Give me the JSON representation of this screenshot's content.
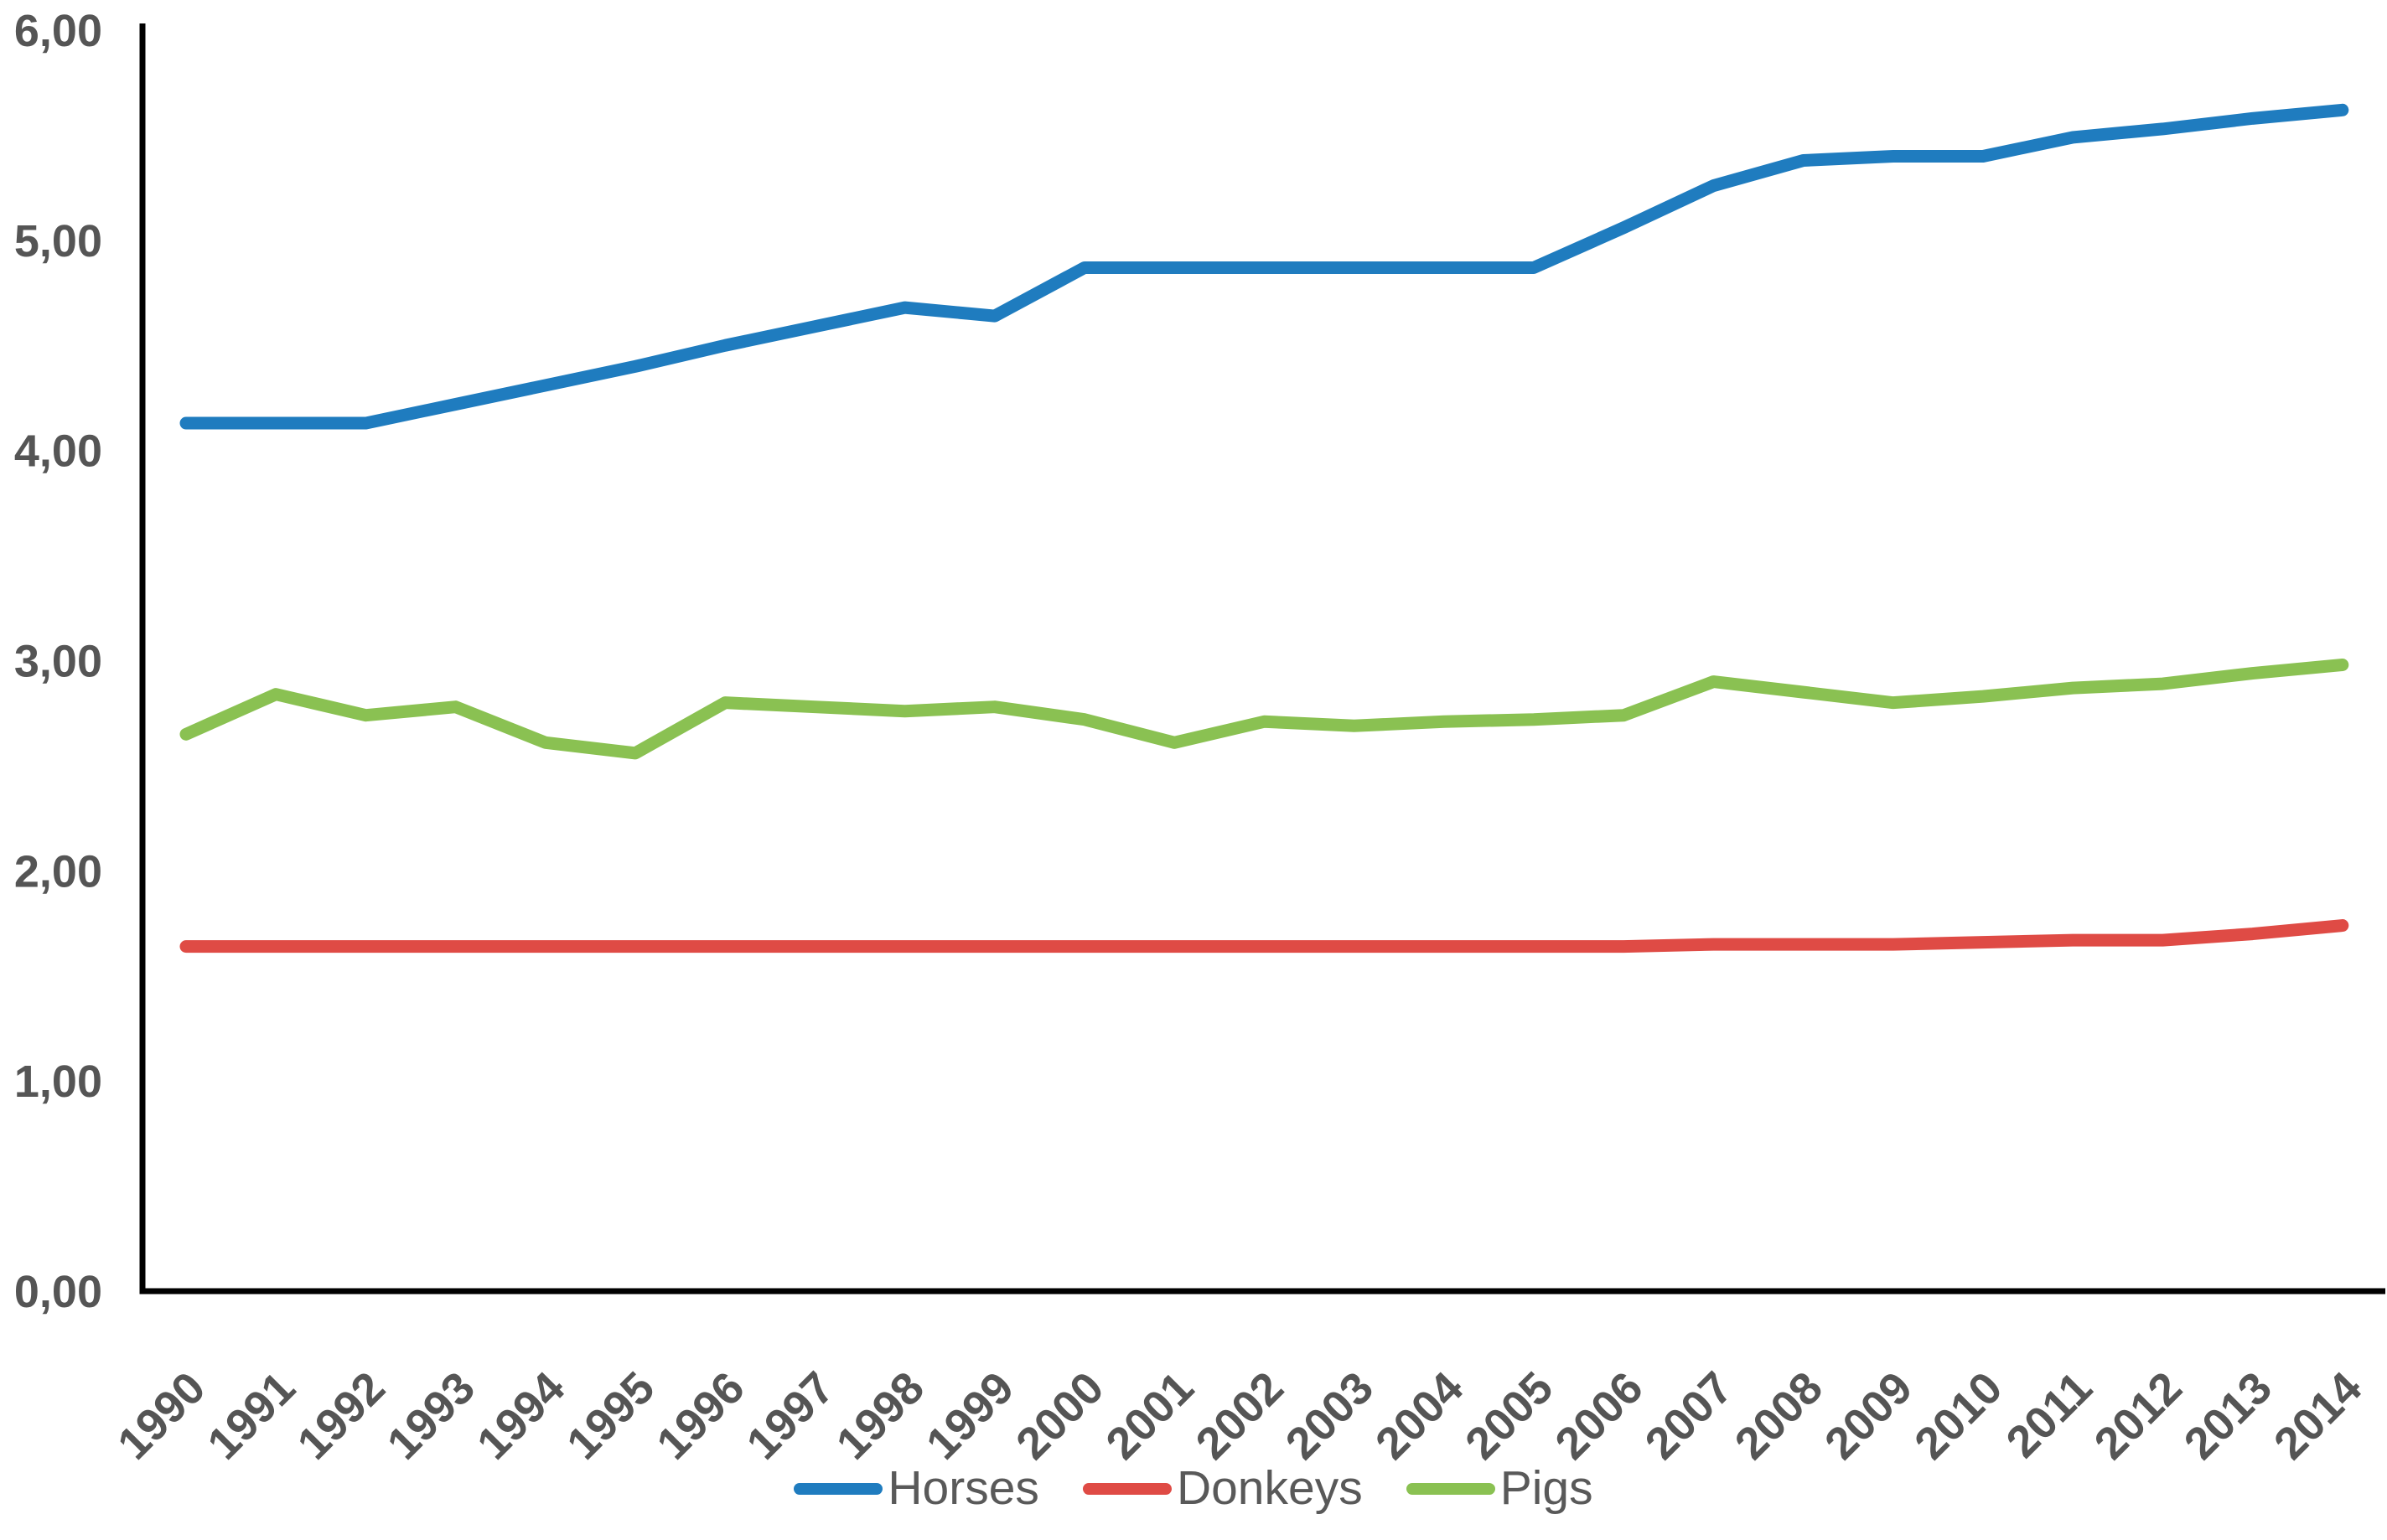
{
  "chart_data": {
    "type": "line",
    "title": "",
    "xlabel": "",
    "ylabel": "",
    "categories": [
      "1990",
      "1991",
      "1992",
      "1993",
      "1994",
      "1995",
      "1996",
      "1997",
      "1998",
      "1999",
      "2000",
      "2001",
      "2002",
      "2003",
      "2004",
      "2005",
      "2006",
      "2007",
      "2008",
      "2009",
      "2010",
      "2011",
      "2012",
      "2013",
      "2014"
    ],
    "series": [
      {
        "name": "Horses",
        "color": "#1F7CBF",
        "values": [
          4.13,
          4.13,
          4.13,
          4.22,
          4.31,
          4.4,
          4.5,
          4.59,
          4.68,
          4.64,
          4.87,
          4.87,
          4.87,
          4.87,
          4.87,
          4.87,
          5.06,
          5.26,
          5.38,
          5.4,
          5.4,
          5.49,
          5.53,
          5.58,
          5.62
        ]
      },
      {
        "name": "Donkeys",
        "color": "#DF4B45",
        "values": [
          1.64,
          1.64,
          1.64,
          1.64,
          1.64,
          1.64,
          1.64,
          1.64,
          1.64,
          1.64,
          1.64,
          1.64,
          1.64,
          1.64,
          1.64,
          1.64,
          1.64,
          1.65,
          1.65,
          1.65,
          1.66,
          1.67,
          1.67,
          1.7,
          1.74
        ]
      },
      {
        "name": "Pigs",
        "color": "#8AC152",
        "values": [
          2.65,
          2.84,
          2.74,
          2.78,
          2.61,
          2.56,
          2.8,
          2.78,
          2.76,
          2.78,
          2.72,
          2.61,
          2.71,
          2.69,
          2.71,
          2.72,
          2.74,
          2.9,
          2.85,
          2.8,
          2.83,
          2.87,
          2.89,
          2.94,
          2.98
        ]
      }
    ],
    "ylim": [
      0,
      6
    ],
    "ytick_step": 1,
    "y_tick_labels": [
      "0,00",
      "1,00",
      "2,00",
      "3,00",
      "4,00",
      "5,00",
      "6,00"
    ],
    "decimal_separator": ",",
    "grid": false,
    "legend_position": "bottom",
    "x_tick_rotation_deg": 45,
    "axis_color": "#000000",
    "tick_label_color": "#555555",
    "legend_text_color": "#595959"
  }
}
